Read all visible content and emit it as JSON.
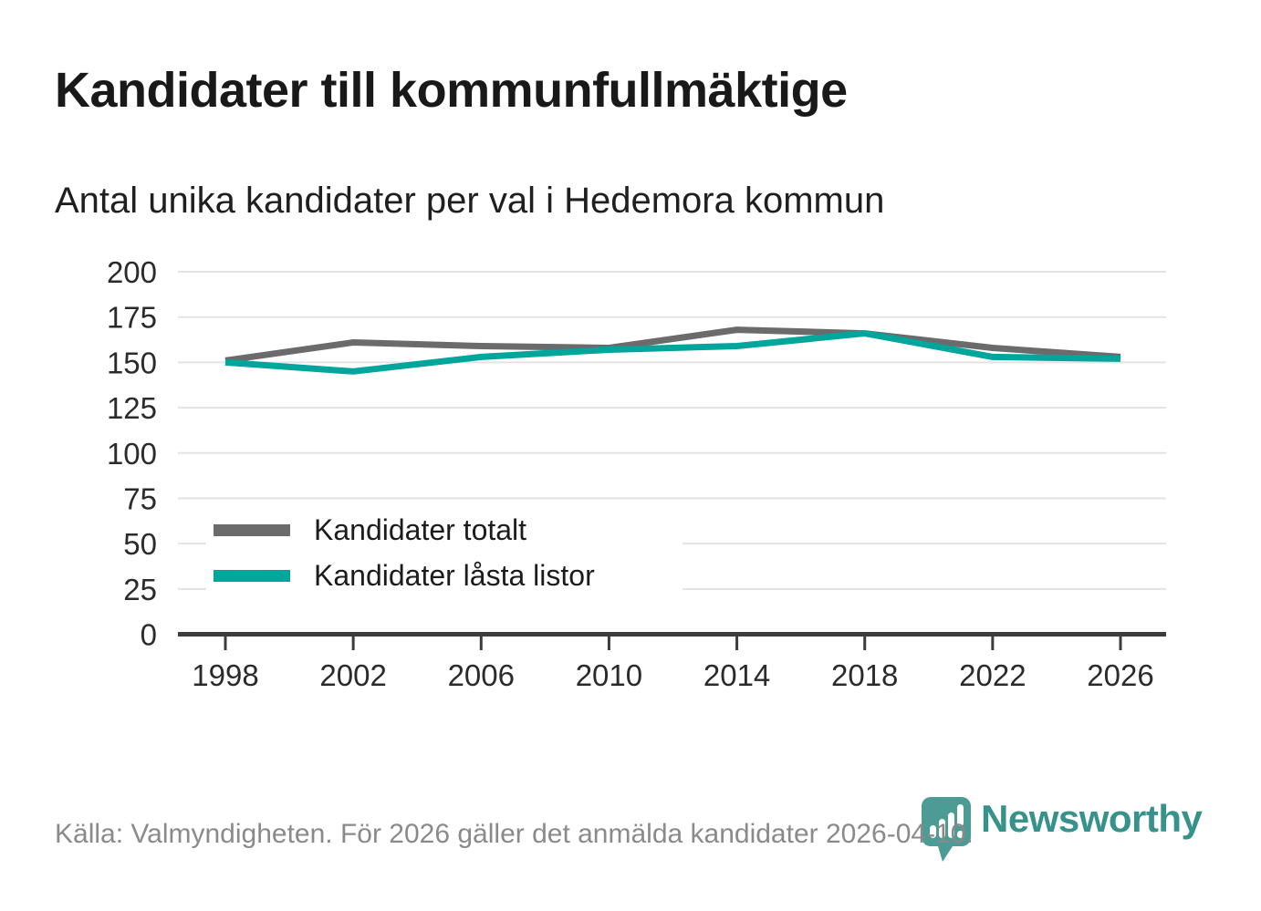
{
  "header": {
    "title": "Kandidater till kommunfullmäktige",
    "subtitle": "Antal unika kandidater per val i Hedemora kommun"
  },
  "chart_data": {
    "type": "line",
    "x": [
      1998,
      2002,
      2006,
      2010,
      2014,
      2018,
      2022,
      2026
    ],
    "series": [
      {
        "name": "Kandidater totalt",
        "color": "#6b6b6b",
        "values": [
          151,
          161,
          159,
          158,
          168,
          166,
          158,
          153
        ]
      },
      {
        "name": "Kandidater låsta listor",
        "color": "#00a59b",
        "values": [
          150,
          145,
          153,
          157,
          159,
          166,
          153,
          152
        ]
      }
    ],
    "ylim": [
      0,
      200
    ],
    "yticks": [
      0,
      25,
      50,
      75,
      100,
      125,
      150,
      175,
      200
    ],
    "grid": "horizontal",
    "legend_position": "inside-left",
    "xlabel": "",
    "ylabel": "",
    "title": "Kandidater till kommunfullmäktige",
    "subtitle": "Antal unika kandidater per val i Hedemora kommun"
  },
  "footer": {
    "source": "Källa: Valmyndigheten. För 2026 gäller det anmälda kandidater 2026-04-10.",
    "brand": "Newsworthy"
  },
  "colors": {
    "series_total": "#6b6b6b",
    "series_locked": "#00a59b",
    "gridline": "#e3e3e3",
    "axis": "#3c3c3c",
    "tick_label": "#2b2b2b",
    "title_text": "#191919",
    "source_text": "#8a8a8a",
    "logo_pin": "#4c9b95",
    "logo_wordmark": "#37928c"
  }
}
